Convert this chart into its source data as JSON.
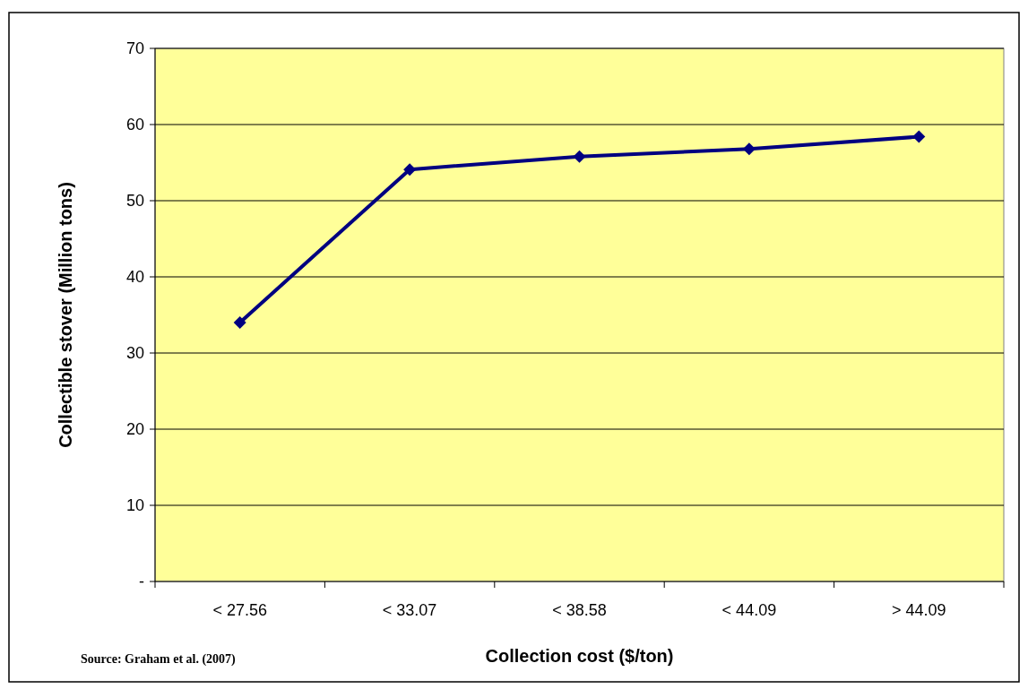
{
  "chart_data": {
    "type": "line",
    "xlabel": "Collection cost ($/ton)",
    "ylabel": "Collectible stover (Million tons)",
    "categories": [
      "< 27.56",
      "< 33.07",
      "< 38.58",
      "< 44.09",
      "> 44.09"
    ],
    "series": [
      {
        "color": "#000080",
        "values": [
          34,
          54.1,
          55.8,
          56.8,
          58.4
        ]
      }
    ],
    "ylim": [
      0,
      70
    ],
    "yticks": [
      {
        "value": 0,
        "label": "-"
      },
      10,
      20,
      30,
      40,
      50,
      60,
      70
    ],
    "grid": "y",
    "marker": "diamond",
    "line_style": "solid",
    "annotations": [
      "Source: Graham et al. (2007)"
    ]
  }
}
